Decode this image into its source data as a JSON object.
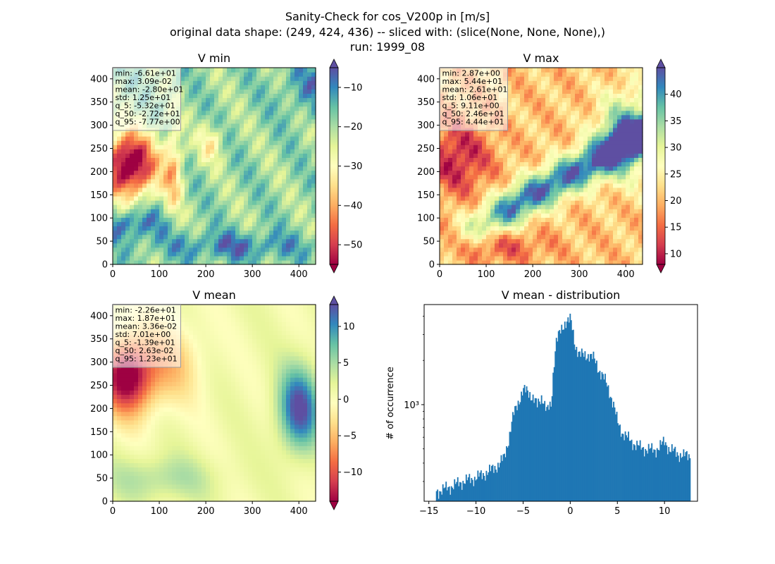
{
  "figure": {
    "title_lines": [
      "Sanity-Check for cos_V200p in [m/s]",
      "original data shape: (249, 424, 436) -- sliced with: (slice(None, None, None),)",
      "run: 1999_08"
    ]
  },
  "panels": [
    {
      "id": "vmin",
      "title": "V min",
      "colormap": "Spectral",
      "x_ticks": [
        "0",
        "100",
        "200",
        "300",
        "400"
      ],
      "y_ticks": [
        "0",
        "50",
        "100",
        "150",
        "200",
        "250",
        "300",
        "350",
        "400"
      ],
      "colorbar_ticks": [
        "−50",
        "−40",
        "−30",
        "−20",
        "−10"
      ],
      "colorbar_range": [
        -55,
        -5
      ],
      "stats": [
        "min: -6.61e+01",
        "max: 3.09e-02",
        "mean: -2.80e+01",
        "std: 1.25e+01",
        "q_5: -5.32e+01",
        "q_50: -2.72e+01",
        "q_95: -7.77e+00"
      ]
    },
    {
      "id": "vmax",
      "title": "V max",
      "colormap": "Spectral",
      "x_ticks": [
        "0",
        "100",
        "200",
        "300",
        "400"
      ],
      "y_ticks": [
        "0",
        "50",
        "100",
        "150",
        "200",
        "250",
        "300",
        "350",
        "400"
      ],
      "colorbar_ticks": [
        "10",
        "15",
        "20",
        "25",
        "30",
        "35",
        "40"
      ],
      "colorbar_range": [
        8,
        45
      ],
      "stats": [
        "min: 2.87e+00",
        "max: 5.44e+01",
        "mean: 2.61e+01",
        "std: 1.06e+01",
        "q_5: 9.11e+00",
        "q_50: 2.46e+01",
        "q_95: 4.44e+01"
      ]
    },
    {
      "id": "vmean",
      "title": "V mean",
      "colormap": "Spectral",
      "x_ticks": [
        "0",
        "100",
        "200",
        "300",
        "400"
      ],
      "y_ticks": [
        "0",
        "50",
        "100",
        "150",
        "200",
        "250",
        "300",
        "350",
        "400"
      ],
      "colorbar_ticks": [
        "−10",
        "−5",
        "0",
        "5",
        "10"
      ],
      "colorbar_range": [
        -14,
        13
      ],
      "stats": [
        "min: -2.26e+01",
        "max: 1.87e+01",
        "mean: 3.36e-02",
        "std: 7.01e+00",
        "q_5: -1.39e+01",
        "q_50: 2.63e-02",
        "q_95: 1.23e+01"
      ]
    }
  ],
  "chart_data": [
    {
      "type": "heatmap",
      "title": "V min",
      "xlim": [
        0,
        436
      ],
      "ylim": [
        0,
        424
      ],
      "color_range": [
        -55,
        -5
      ],
      "colormap": "Spectral"
    },
    {
      "type": "heatmap",
      "title": "V max",
      "xlim": [
        0,
        436
      ],
      "ylim": [
        0,
        424
      ],
      "color_range": [
        8,
        45
      ],
      "colormap": "Spectral"
    },
    {
      "type": "heatmap",
      "title": "V mean",
      "xlim": [
        0,
        436
      ],
      "ylim": [
        0,
        424
      ],
      "color_range": [
        -14,
        13
      ],
      "colormap": "Spectral"
    },
    {
      "type": "bar",
      "title": "V mean - distribution",
      "xlabel": "",
      "ylabel": "# of occurrence",
      "yscale": "log",
      "xlim": [
        -15.5,
        13.5
      ],
      "ylim": [
        220,
        4800
      ],
      "x_ticks": [
        "−15",
        "−10",
        "−5",
        "0",
        "5",
        "10"
      ],
      "y_tick_labels": [
        "10³"
      ],
      "bar_color": "#1f77b4",
      "x": [
        -14.0,
        -13.5,
        -13.0,
        -12.5,
        -12.0,
        -11.5,
        -11.0,
        -10.5,
        -10.0,
        -9.5,
        -9.0,
        -8.5,
        -8.0,
        -7.5,
        -7.0,
        -6.5,
        -6.0,
        -5.5,
        -5.0,
        -4.5,
        -4.0,
        -3.5,
        -3.0,
        -2.5,
        -2.0,
        -1.5,
        -1.0,
        -0.5,
        0.0,
        0.5,
        1.0,
        1.5,
        2.0,
        2.5,
        3.0,
        3.5,
        4.0,
        4.5,
        5.0,
        5.5,
        6.0,
        6.5,
        7.0,
        7.5,
        8.0,
        8.5,
        9.0,
        9.5,
        10.0,
        10.5,
        11.0,
        11.5,
        12.0
      ],
      "values": [
        258,
        265,
        272,
        280,
        290,
        298,
        305,
        312,
        318,
        330,
        342,
        355,
        375,
        395,
        440,
        590,
        860,
        1050,
        1250,
        1230,
        1130,
        980,
        1150,
        900,
        1000,
        2700,
        3150,
        3700,
        3800,
        2550,
        2200,
        2150,
        2200,
        2050,
        1750,
        1550,
        1300,
        1050,
        760,
        650,
        600,
        560,
        530,
        510,
        500,
        495,
        490,
        520,
        560,
        500,
        480,
        460,
        450
      ]
    }
  ]
}
